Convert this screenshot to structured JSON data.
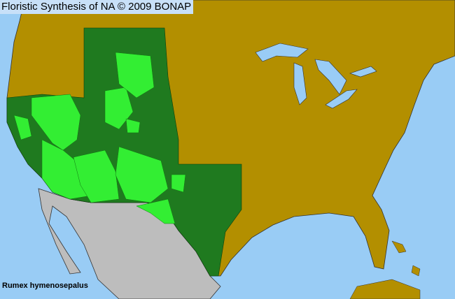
{
  "header": {
    "title": "Floristic Synthesis of NA © 2009 BONAP"
  },
  "species": "Rumex hymenosepalus",
  "colors": {
    "ocean": "#99ccf5",
    "absent": "#b38f00",
    "present_state": "#1f7a1f",
    "present_county": "#33ee33",
    "outside_range": "#bdbdbd",
    "borders": "#333333"
  }
}
